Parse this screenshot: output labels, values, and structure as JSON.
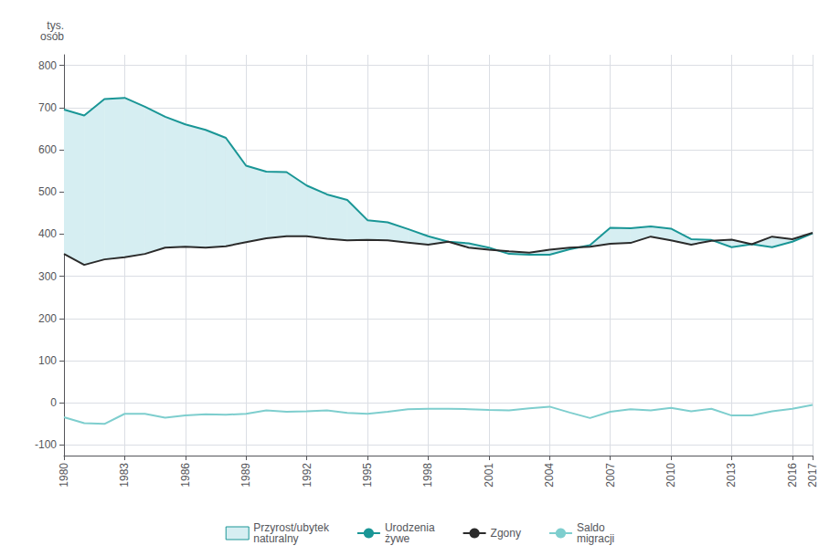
{
  "chart_data": {
    "type": "line",
    "ylabel": "tys.\nosób",
    "x": [
      1980,
      1981,
      1982,
      1983,
      1984,
      1985,
      1986,
      1987,
      1988,
      1989,
      1990,
      1991,
      1992,
      1993,
      1994,
      1995,
      1996,
      1997,
      1998,
      1999,
      2000,
      2001,
      2002,
      2003,
      2004,
      2005,
      2006,
      2007,
      2008,
      2009,
      2010,
      2011,
      2012,
      2013,
      2014,
      2015,
      2016,
      2017
    ],
    "xlim": [
      1980,
      2017
    ],
    "xticks": [
      1980,
      1983,
      1986,
      1989,
      1992,
      1995,
      1998,
      2001,
      2004,
      2007,
      2010,
      2013,
      2016,
      2017
    ],
    "ylim": [
      -125,
      825
    ],
    "yticks": [
      -100,
      0,
      100,
      200,
      300,
      400,
      500,
      600,
      700,
      800
    ],
    "grid": true,
    "legend": "bottom",
    "series": [
      {
        "name": "Przyrost/ubytek\nnaturalny",
        "type": "band",
        "color": "#d6eef2",
        "values": [
          [
            695,
            353
          ],
          [
            681,
            327
          ],
          [
            720,
            340
          ],
          [
            723,
            345
          ],
          [
            702,
            353
          ],
          [
            678,
            368
          ],
          [
            660,
            370
          ],
          [
            647,
            368
          ],
          [
            628,
            371
          ],
          [
            562,
            381
          ],
          [
            548,
            390
          ],
          [
            547,
            395
          ],
          [
            515,
            395
          ],
          [
            494,
            389
          ],
          [
            481,
            385
          ],
          [
            433,
            386
          ],
          [
            428,
            385
          ],
          [
            412,
            380
          ],
          [
            395,
            375
          ],
          [
            382,
            382
          ],
          [
            378,
            368
          ],
          [
            368,
            363
          ],
          [
            353,
            359
          ],
          [
            351,
            356
          ],
          [
            351,
            363
          ],
          [
            364,
            368
          ],
          [
            374,
            370
          ],
          [
            415,
            377
          ],
          [
            414,
            379
          ],
          [
            418,
            394
          ],
          [
            413,
            385
          ],
          [
            388,
            375
          ],
          [
            386,
            384
          ],
          [
            369,
            387
          ],
          [
            376,
            376
          ],
          [
            369,
            394
          ],
          [
            382,
            388
          ],
          [
            402,
            403
          ]
        ]
      },
      {
        "name": "Urodzenia\nżywe",
        "type": "line",
        "color": "#1a9696",
        "values": [
          695,
          681,
          720,
          723,
          702,
          678,
          660,
          647,
          628,
          562,
          548,
          547,
          515,
          494,
          481,
          433,
          428,
          412,
          395,
          382,
          378,
          368,
          353,
          351,
          351,
          364,
          374,
          415,
          414,
          418,
          413,
          388,
          386,
          369,
          376,
          369,
          382,
          402
        ]
      },
      {
        "name": "Zgony",
        "type": "line",
        "color": "#2b2b2b",
        "values": [
          353,
          327,
          340,
          345,
          353,
          368,
          370,
          368,
          371,
          381,
          390,
          395,
          395,
          389,
          385,
          386,
          385,
          380,
          375,
          382,
          368,
          363,
          359,
          356,
          363,
          368,
          370,
          377,
          379,
          394,
          385,
          375,
          384,
          387,
          376,
          394,
          388,
          403
        ]
      },
      {
        "name": "Saldo\nmigracji",
        "type": "line",
        "color": "#7ecece",
        "values": [
          -34,
          -48,
          -50,
          -26,
          -26,
          -35,
          -30,
          -27,
          -28,
          -26,
          -18,
          -21,
          -20,
          -18,
          -24,
          -26,
          -21,
          -15,
          -14,
          -14,
          -15,
          -17,
          -18,
          -13,
          -9,
          -23,
          -36,
          -21,
          -15,
          -18,
          -12,
          -20,
          -14,
          -30,
          -30,
          -20,
          -14,
          -5
        ]
      }
    ]
  }
}
